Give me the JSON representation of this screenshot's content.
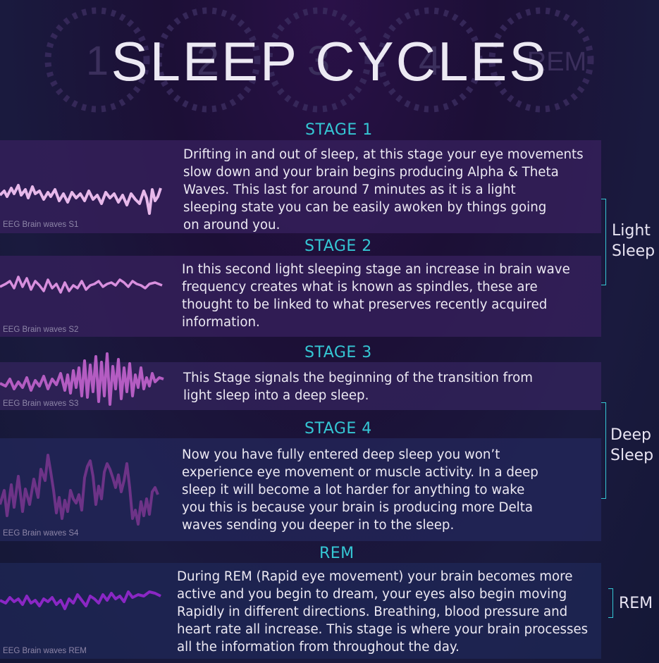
{
  "title": "SLEEP CYCLES",
  "cycle_numbers": [
    "1",
    "2",
    "3",
    "4",
    "REM"
  ],
  "colors": {
    "accent": "#35c7d4",
    "wave_s1": "#e7b8ea",
    "wave_s2": "#d88fde",
    "wave_s3": "#b45cc2",
    "wave_s4": "#6d3387",
    "wave_rem": "#8a27c4"
  },
  "stages": [
    {
      "label": "STAGE 1",
      "description": "Drifting in and out of sleep, at this stage your eye movements\nslow down and  your brain begins producing Alpha & Theta\nWaves. This last for around 7 minutes as it is a light\nsleeping state you can be easily awoken by things going\non around you.",
      "eeg_label": "EEG Brain waves S1"
    },
    {
      "label": "STAGE 2",
      "description": "In this second light sleeping stage an increase in brain wave\nfrequency creates what is known as spindles, these are\nthought to be  linked to what preserves recently acquired\ninformation.",
      "eeg_label": "EEG Brain waves S2"
    },
    {
      "label": "STAGE 3",
      "description": "This Stage signals the beginning of the transition from\nlight sleep into a deep sleep.",
      "eeg_label": "EEG Brain waves S3"
    },
    {
      "label": "STAGE 4",
      "description": "Now you have fully entered deep sleep you won’t\nexperience eye movement or muscle activity. In a deep\nsleep it will become a lot harder for anything to wake\nyou this is because your brain is producing more Delta\nwaves sending you deeper in to the sleep.",
      "eeg_label": "EEG Brain waves S4"
    },
    {
      "label": "REM",
      "description": "During REM (Rapid eye movement) your brain becomes more\nactive and you begin to dream, your eyes also begin moving\nRapidly in different directions. Breathing, blood pressure and\nheart rate all increase. This stage is where your brain processes\nall the  information from throughout the day.",
      "eeg_label": "EEG Brain waves REM"
    }
  ],
  "groups": {
    "light": "Light\nSleep",
    "deep": "Deep\nSleep",
    "rem": "REM"
  }
}
